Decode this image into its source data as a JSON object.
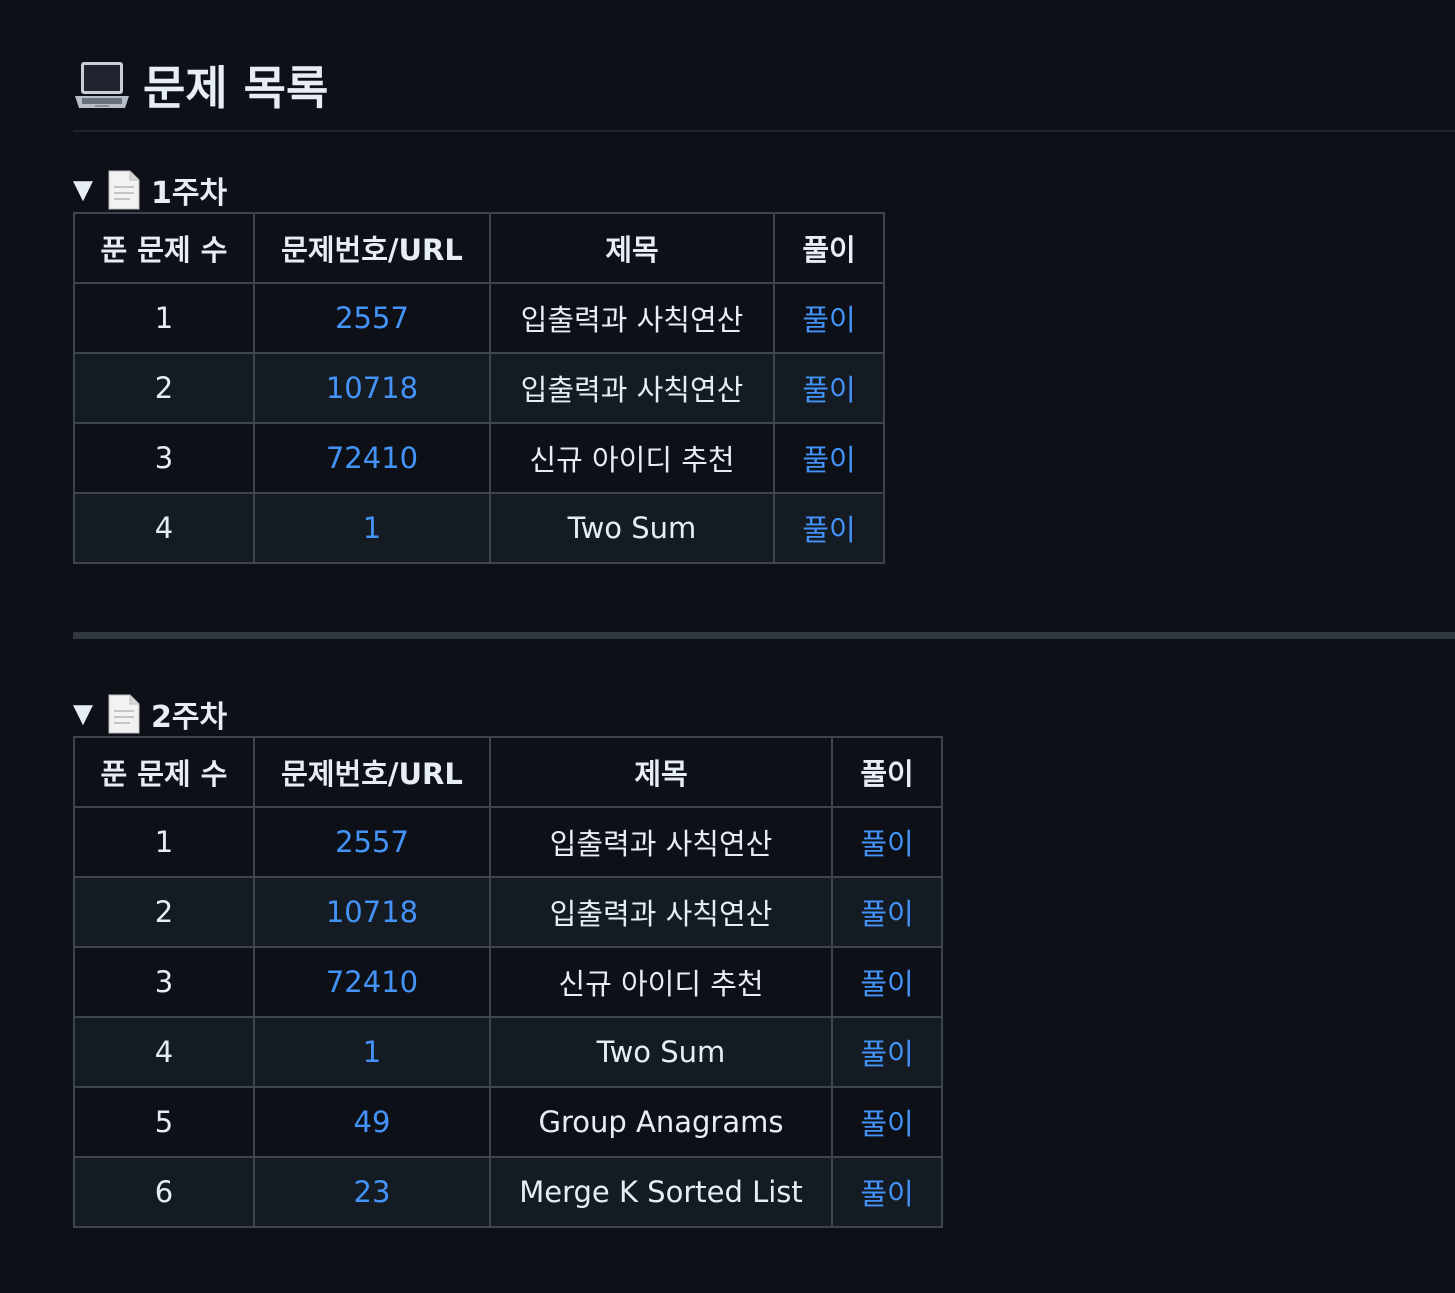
{
  "heading": {
    "icon": "laptop-icon",
    "title": "문제 목록"
  },
  "colors": {
    "background": "#0d1117",
    "link": "#4493f8",
    "text": "#e6edf3",
    "border": "#3d444d",
    "alt_row": "#151b23"
  },
  "weeks": [
    {
      "label": "1주차",
      "toggle": "▼",
      "icon": "page-icon",
      "headers": [
        "푼 문제 수",
        "문제번호/URL",
        "제목",
        "풀이"
      ],
      "rows": [
        {
          "n": "1",
          "id": "2557",
          "title": "입출력과 사칙연산",
          "solution": "풀이"
        },
        {
          "n": "2",
          "id": "10718",
          "title": "입출력과 사칙연산",
          "solution": "풀이"
        },
        {
          "n": "3",
          "id": "72410",
          "title": "신규 아이디 추천",
          "solution": "풀이"
        },
        {
          "n": "4",
          "id": "1",
          "title": "Two Sum",
          "solution": "풀이"
        }
      ]
    },
    {
      "label": "2주차",
      "toggle": "▼",
      "icon": "page-icon",
      "headers": [
        "푼 문제 수",
        "문제번호/URL",
        "제목",
        "풀이"
      ],
      "rows": [
        {
          "n": "1",
          "id": "2557",
          "title": "입출력과 사칙연산",
          "solution": "풀이"
        },
        {
          "n": "2",
          "id": "10718",
          "title": "입출력과 사칙연산",
          "solution": "풀이"
        },
        {
          "n": "3",
          "id": "72410",
          "title": "신규 아이디 추천",
          "solution": "풀이"
        },
        {
          "n": "4",
          "id": "1",
          "title": "Two Sum",
          "solution": "풀이"
        },
        {
          "n": "5",
          "id": "49",
          "title": "Group Anagrams",
          "solution": "풀이"
        },
        {
          "n": "6",
          "id": "23",
          "title": "Merge K Sorted List",
          "solution": "풀이"
        }
      ]
    }
  ]
}
